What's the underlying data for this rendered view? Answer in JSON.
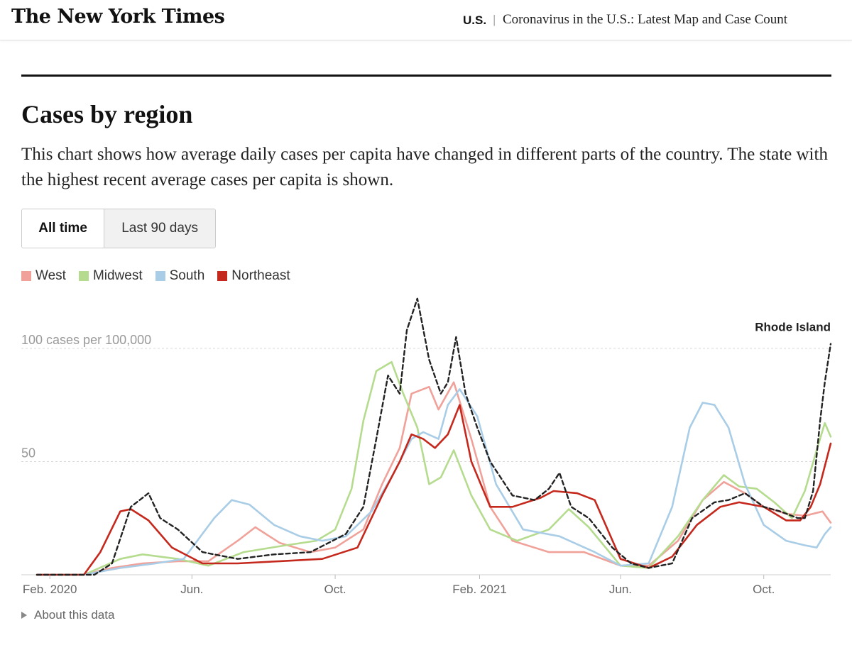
{
  "header": {
    "logo": "The New York Times",
    "section": "U.S.",
    "separator": "|",
    "headline": "Coronavirus in the U.S.: Latest Map and Case Count"
  },
  "page": {
    "title": "Cases by region",
    "description": "This chart shows how average daily cases per capita have changed in different parts of the country. The state with the highest recent average cases per capita is shown."
  },
  "toggle": {
    "all_time": "All time",
    "last_90": "Last 90 days",
    "selected": "All time"
  },
  "about": "About this data",
  "colors": {
    "West": "#f0a29a",
    "Midwest": "#b5dc8e",
    "South": "#a9cde6",
    "Northeast": "#c5281c",
    "Rhode Island": "#222222"
  },
  "chart_data": {
    "type": "line",
    "x_domain": [
      "2020-01-21",
      "2021-11-27"
    ],
    "ylim": [
      0,
      126
    ],
    "y_ticks": [
      {
        "value": 50,
        "label": "50"
      },
      {
        "value": 100,
        "label": "100 cases per 100,000"
      }
    ],
    "x_ticks": [
      {
        "date": "2020-02-01",
        "label": "Feb. 2020"
      },
      {
        "date": "2020-06-01",
        "label": "Jun."
      },
      {
        "date": "2020-10-01",
        "label": "Oct."
      },
      {
        "date": "2021-02-01",
        "label": "Feb. 2021"
      },
      {
        "date": "2021-06-01",
        "label": "Jun."
      },
      {
        "date": "2021-10-01",
        "label": "Oct."
      }
    ],
    "series": [
      {
        "name": "West",
        "style": "solid",
        "x": [
          "2020-01-21",
          "2020-03-01",
          "2020-03-25",
          "2020-04-20",
          "2020-05-20",
          "2020-06-15",
          "2020-07-10",
          "2020-07-25",
          "2020-08-15",
          "2020-09-10",
          "2020-10-01",
          "2020-10-25",
          "2020-11-10",
          "2020-11-25",
          "2020-12-05",
          "2020-12-20",
          "2020-12-28",
          "2021-01-10",
          "2021-01-25",
          "2021-02-10",
          "2021-03-01",
          "2021-04-01",
          "2021-05-01",
          "2021-06-01",
          "2021-06-25",
          "2021-07-20",
          "2021-08-10",
          "2021-08-28",
          "2021-09-15",
          "2021-10-01",
          "2021-10-20",
          "2021-11-05",
          "2021-11-20",
          "2021-11-27"
        ],
        "values": [
          0,
          0,
          3,
          5,
          6,
          6,
          15,
          21,
          14,
          10,
          12,
          20,
          40,
          56,
          80,
          83,
          73,
          85,
          60,
          30,
          15,
          10,
          10,
          4,
          4,
          15,
          33,
          41,
          36,
          30,
          27,
          26,
          28,
          23
        ]
      },
      {
        "name": "Midwest",
        "style": "solid",
        "x": [
          "2020-01-21",
          "2020-03-01",
          "2020-04-01",
          "2020-04-20",
          "2020-05-20",
          "2020-06-15",
          "2020-07-15",
          "2020-08-20",
          "2020-09-15",
          "2020-10-01",
          "2020-10-15",
          "2020-10-25",
          "2020-11-05",
          "2020-11-18",
          "2020-11-28",
          "2020-12-10",
          "2020-12-20",
          "2020-12-30",
          "2021-01-10",
          "2021-01-25",
          "2021-02-10",
          "2021-03-05",
          "2021-04-01",
          "2021-04-18",
          "2021-05-05",
          "2021-06-01",
          "2021-06-25",
          "2021-07-20",
          "2021-08-10",
          "2021-08-28",
          "2021-09-10",
          "2021-09-25",
          "2021-10-10",
          "2021-10-25",
          "2021-11-05",
          "2021-11-15",
          "2021-11-22",
          "2021-11-27"
        ],
        "values": [
          0,
          0,
          7,
          9,
          7,
          4,
          10,
          13,
          15,
          20,
          38,
          68,
          90,
          94,
          80,
          65,
          40,
          43,
          55,
          35,
          20,
          15,
          20,
          29,
          21,
          4,
          3,
          17,
          33,
          44,
          39,
          38,
          32,
          25,
          37,
          55,
          67,
          61
        ]
      },
      {
        "name": "South",
        "style": "solid",
        "x": [
          "2020-01-21",
          "2020-03-01",
          "2020-04-01",
          "2020-05-01",
          "2020-05-25",
          "2020-06-20",
          "2020-07-05",
          "2020-07-20",
          "2020-08-10",
          "2020-09-01",
          "2020-09-20",
          "2020-10-10",
          "2020-11-01",
          "2020-11-20",
          "2020-12-05",
          "2020-12-15",
          "2020-12-28",
          "2021-01-05",
          "2021-01-15",
          "2021-01-30",
          "2021-02-15",
          "2021-03-10",
          "2021-04-10",
          "2021-05-10",
          "2021-06-01",
          "2021-06-25",
          "2021-07-15",
          "2021-07-30",
          "2021-08-10",
          "2021-08-20",
          "2021-09-01",
          "2021-09-15",
          "2021-10-01",
          "2021-10-20",
          "2021-11-05",
          "2021-11-15",
          "2021-11-22",
          "2021-11-27"
        ],
        "values": [
          0,
          0,
          3,
          5,
          7,
          25,
          33,
          31,
          22,
          17,
          15,
          17,
          28,
          45,
          60,
          63,
          60,
          75,
          82,
          70,
          40,
          20,
          17,
          10,
          4,
          5,
          30,
          65,
          76,
          75,
          65,
          40,
          22,
          15,
          13,
          12,
          18,
          21
        ]
      },
      {
        "name": "Northeast",
        "style": "solid",
        "x": [
          "2020-01-21",
          "2020-03-01",
          "2020-03-15",
          "2020-04-01",
          "2020-04-10",
          "2020-04-25",
          "2020-05-15",
          "2020-06-10",
          "2020-07-10",
          "2020-08-15",
          "2020-09-20",
          "2020-10-20",
          "2020-11-10",
          "2020-11-25",
          "2020-12-05",
          "2020-12-15",
          "2020-12-25",
          "2021-01-05",
          "2021-01-15",
          "2021-01-25",
          "2021-02-10",
          "2021-03-01",
          "2021-03-25",
          "2021-04-05",
          "2021-04-25",
          "2021-05-10",
          "2021-06-01",
          "2021-06-25",
          "2021-07-15",
          "2021-08-05",
          "2021-08-25",
          "2021-09-10",
          "2021-10-01",
          "2021-10-20",
          "2021-11-01",
          "2021-11-10",
          "2021-11-18",
          "2021-11-27"
        ],
        "values": [
          0,
          0,
          10,
          28,
          29,
          24,
          12,
          5,
          5,
          6,
          7,
          12,
          35,
          50,
          62,
          60,
          56,
          62,
          75,
          50,
          30,
          30,
          34,
          37,
          36,
          33,
          7,
          3,
          8,
          22,
          30,
          32,
          30,
          24,
          24,
          30,
          40,
          58
        ]
      },
      {
        "name": "Rhode Island",
        "style": "dashed",
        "x": [
          "2020-01-21",
          "2020-03-10",
          "2020-03-25",
          "2020-04-10",
          "2020-04-25",
          "2020-05-05",
          "2020-05-20",
          "2020-06-10",
          "2020-07-10",
          "2020-08-10",
          "2020-09-10",
          "2020-10-10",
          "2020-10-25",
          "2020-11-05",
          "2020-11-15",
          "2020-11-25",
          "2020-12-01",
          "2020-12-10",
          "2020-12-20",
          "2020-12-30",
          "2021-01-05",
          "2021-01-12",
          "2021-01-20",
          "2021-01-30",
          "2021-02-10",
          "2021-03-01",
          "2021-03-20",
          "2021-04-01",
          "2021-04-10",
          "2021-04-20",
          "2021-05-05",
          "2021-05-25",
          "2021-06-10",
          "2021-06-25",
          "2021-07-15",
          "2021-08-01",
          "2021-08-20",
          "2021-09-01",
          "2021-09-15",
          "2021-10-01",
          "2021-10-15",
          "2021-10-30",
          "2021-11-05",
          "2021-11-12",
          "2021-11-18",
          "2021-11-22",
          "2021-11-27"
        ],
        "values": [
          0,
          0,
          5,
          30,
          36,
          25,
          20,
          10,
          7,
          9,
          10,
          18,
          30,
          60,
          88,
          80,
          108,
          122,
          95,
          80,
          85,
          105,
          80,
          65,
          50,
          35,
          33,
          38,
          45,
          30,
          25,
          12,
          5,
          3,
          5,
          25,
          32,
          33,
          36,
          30,
          28,
          25,
          25,
          37,
          68,
          85,
          102
        ]
      }
    ],
    "annotations": [
      {
        "text": "Rhode Island",
        "series": "Rhode Island"
      }
    ]
  }
}
